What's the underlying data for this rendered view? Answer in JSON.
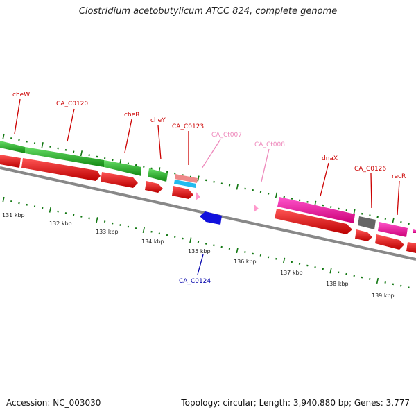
{
  "title": "Clostridium acetobutylicum ATCC 824, complete genome",
  "accession": "Accession: NC_003030",
  "summary": "Topology: circular; Length: 3,940,880 bp; Genes: 3,777",
  "scale_labels": [
    "131 kbp",
    "132 kbp",
    "133 kbp",
    "134 kbp",
    "135 kbp",
    "136 kbp",
    "137 kbp",
    "138 kbp",
    "139 kbp"
  ],
  "gene_labels": [
    "cheW",
    "CA_C0120",
    "cheR",
    "cheY",
    "CA_C0123",
    "CA_Ct007",
    "CA_Ct008",
    "dnaX",
    "CA_C0126",
    "recR",
    "CA_C0124"
  ],
  "colors": {
    "cds": "#ee0000",
    "gene_green": "#33bb33",
    "gene_magenta": "#ee1199",
    "trna_pink": "#ff99cc",
    "gene_blue": "#1111dd",
    "gene_gray": "#666666",
    "tick_green": "#117711",
    "label_red": "#cc0000",
    "label_pink": "#ee88bb",
    "label_blue": "#0000aa"
  }
}
